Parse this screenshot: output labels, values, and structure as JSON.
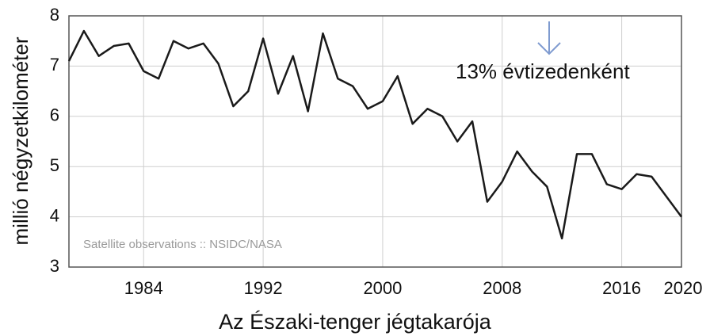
{
  "chart_data": {
    "type": "line",
    "x_label": "Az Északi-tenger jégtakarója",
    "y_label": "millió négyzetkilométer",
    "annotations": [
      "13% évtizedenként",
      "Satellite observations :: NSIDC/NASA"
    ],
    "x": [
      1979,
      1980,
      1981,
      1982,
      1983,
      1984,
      1985,
      1986,
      1987,
      1988,
      1989,
      1990,
      1991,
      1992,
      1993,
      1994,
      1995,
      1996,
      1997,
      1998,
      1999,
      2000,
      2001,
      2002,
      2003,
      2004,
      2005,
      2006,
      2007,
      2008,
      2009,
      2010,
      2011,
      2012,
      2013,
      2014,
      2015,
      2016,
      2017,
      2018,
      2019,
      2020
    ],
    "series": [
      {
        "color": "#1a1a1a",
        "values": [
          7.1,
          7.7,
          7.2,
          7.4,
          7.45,
          6.9,
          6.75,
          7.5,
          7.35,
          7.45,
          7.05,
          6.2,
          6.5,
          7.55,
          6.45,
          7.2,
          6.1,
          7.65,
          6.75,
          6.6,
          6.15,
          6.3,
          6.8,
          5.85,
          6.15,
          6.0,
          5.5,
          5.9,
          4.3,
          4.7,
          5.3,
          4.9,
          4.6,
          3.57,
          5.25,
          5.25,
          4.65,
          4.55,
          4.85,
          4.8,
          4.4,
          4.0
        ]
      }
    ],
    "xlim": [
      1979,
      2020
    ],
    "xticks": [
      1984,
      1992,
      2000,
      2008,
      2016,
      2020
    ],
    "ylim": [
      3,
      8
    ],
    "yticks": [
      3,
      4,
      5,
      6,
      7,
      8
    ],
    "grid": true
  }
}
